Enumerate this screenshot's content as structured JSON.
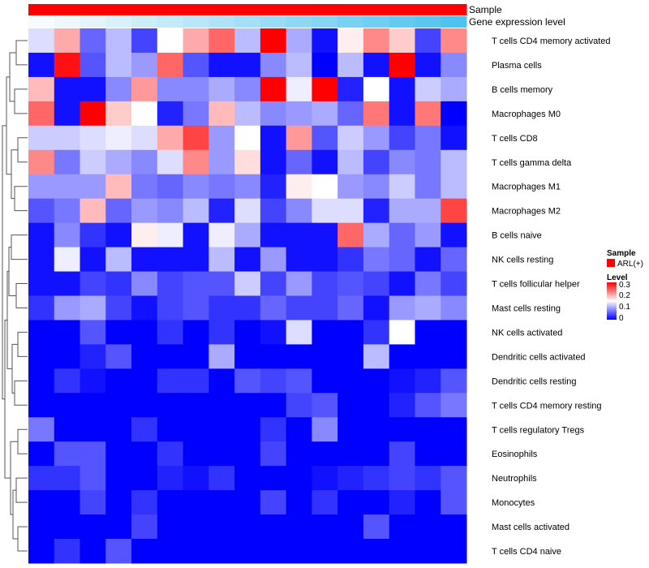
{
  "chart_data": {
    "type": "heatmap",
    "title": "",
    "annotation_tracks": [
      "Sample",
      "Gene expression level"
    ],
    "row_labels": [
      "T cells CD4 memory activated",
      "Plasma cells",
      "B cells memory",
      "Macrophages M0",
      "T cells CD8",
      "T cells gamma delta",
      "Macrophages M1",
      "Macrophages M2",
      "B cells naive",
      "NK cells resting",
      "T cells follicular helper",
      "Mast cells resting",
      "NK cells activated",
      "Dendritic cells activated",
      "Dendritic cells resting",
      "T cells CD4 memory resting",
      "T cells regulatory  Tregs",
      "Eosinophils",
      "Neutrophils",
      "Monocytes",
      "Mast cells activated",
      "T cells CD4 naive"
    ],
    "n_columns": 17,
    "values": [
      [
        0.13,
        0.2,
        0.06,
        0.11,
        0.04,
        0.15,
        0.2,
        0.24,
        0.11,
        0.3,
        0.1,
        0.01,
        0.16,
        0.22,
        0.18,
        0.04,
        0.22
      ],
      [
        0.01,
        0.29,
        0.05,
        0.11,
        0.09,
        0.24,
        0.05,
        0.01,
        0.01,
        0.08,
        0.11,
        0.0,
        0.11,
        0.01,
        0.3,
        0.01,
        0.08
      ],
      [
        0.19,
        0.01,
        0.01,
        0.08,
        0.21,
        0.08,
        0.08,
        0.1,
        0.08,
        0.3,
        0.14,
        0.3,
        0.02,
        0.15,
        0.01,
        0.12,
        0.1
      ],
      [
        0.24,
        0.01,
        0.3,
        0.18,
        0.15,
        0.02,
        0.07,
        0.19,
        0.11,
        0.08,
        0.09,
        0.1,
        0.06,
        0.23,
        0.01,
        0.23,
        0.0
      ],
      [
        0.12,
        0.12,
        0.13,
        0.14,
        0.13,
        0.2,
        0.26,
        0.09,
        0.15,
        0.01,
        0.21,
        0.05,
        0.12,
        0.09,
        0.04,
        0.07,
        0.01
      ],
      [
        0.22,
        0.07,
        0.12,
        0.1,
        0.08,
        0.13,
        0.22,
        0.09,
        0.17,
        0.01,
        0.06,
        0.01,
        0.11,
        0.04,
        0.08,
        0.07,
        0.11
      ],
      [
        0.09,
        0.09,
        0.09,
        0.19,
        0.07,
        0.06,
        0.08,
        0.07,
        0.08,
        0.02,
        0.16,
        0.15,
        0.09,
        0.08,
        0.12,
        0.07,
        0.11
      ],
      [
        0.05,
        0.07,
        0.19,
        0.06,
        0.09,
        0.08,
        0.11,
        0.02,
        0.13,
        0.04,
        0.08,
        0.13,
        0.13,
        0.02,
        0.1,
        0.1,
        0.26
      ],
      [
        0.01,
        0.08,
        0.03,
        0.01,
        0.16,
        0.14,
        0.01,
        0.14,
        0.1,
        0.01,
        0.01,
        0.01,
        0.24,
        0.1,
        0.06,
        0.09,
        0.01
      ],
      [
        0.01,
        0.14,
        0.01,
        0.11,
        0.01,
        0.01,
        0.01,
        0.11,
        0.01,
        0.09,
        0.01,
        0.01,
        0.03,
        0.07,
        0.06,
        0.01,
        0.06
      ],
      [
        0.01,
        0.01,
        0.04,
        0.03,
        0.08,
        0.04,
        0.05,
        0.05,
        0.12,
        0.04,
        0.09,
        0.04,
        0.05,
        0.04,
        0.01,
        0.07,
        0.04
      ],
      [
        0.03,
        0.09,
        0.1,
        0.04,
        0.01,
        0.04,
        0.05,
        0.03,
        0.03,
        0.06,
        0.04,
        0.04,
        0.06,
        0.01,
        0.09,
        0.1,
        0.08
      ],
      [
        0.0,
        0.0,
        0.05,
        0.0,
        0.0,
        0.03,
        0.0,
        0.03,
        0.0,
        0.01,
        0.13,
        0.0,
        0.0,
        0.03,
        0.15,
        0.0,
        0.0
      ],
      [
        0.0,
        0.0,
        0.02,
        0.05,
        0.0,
        0.0,
        0.0,
        0.1,
        0.0,
        0.0,
        0.0,
        0.0,
        0.0,
        0.11,
        0.0,
        0.0,
        0.0
      ],
      [
        0.0,
        0.03,
        0.01,
        0.0,
        0.0,
        0.03,
        0.03,
        0.0,
        0.05,
        0.04,
        0.05,
        0.0,
        0.0,
        0.0,
        0.01,
        0.02,
        0.05
      ],
      [
        0.0,
        0.0,
        0.0,
        0.0,
        0.0,
        0.0,
        0.0,
        0.0,
        0.0,
        0.0,
        0.04,
        0.05,
        0.0,
        0.0,
        0.02,
        0.05,
        0.07
      ],
      [
        0.07,
        0.0,
        0.0,
        0.0,
        0.03,
        0.0,
        0.0,
        0.0,
        0.0,
        0.03,
        0.0,
        0.08,
        0.0,
        0.0,
        0.0,
        0.0,
        0.0
      ],
      [
        0.0,
        0.05,
        0.05,
        0.0,
        0.0,
        0.03,
        0.0,
        0.0,
        0.0,
        0.04,
        0.0,
        0.0,
        0.0,
        0.0,
        0.04,
        0.0,
        0.0
      ],
      [
        0.03,
        0.03,
        0.05,
        0.0,
        0.0,
        0.02,
        0.01,
        0.03,
        0.0,
        0.0,
        0.0,
        0.01,
        0.02,
        0.03,
        0.04,
        0.03,
        0.05
      ],
      [
        0.0,
        0.0,
        0.04,
        0.0,
        0.03,
        0.0,
        0.0,
        0.0,
        0.0,
        0.04,
        0.0,
        0.03,
        0.0,
        0.0,
        0.02,
        0.0,
        0.05
      ],
      [
        0.0,
        0.0,
        0.0,
        0.0,
        0.04,
        0.0,
        0.0,
        0.0,
        0.0,
        0.0,
        0.0,
        0.0,
        0.0,
        0.05,
        0.0,
        0.0,
        0.0
      ],
      [
        0.0,
        0.03,
        0.0,
        0.05,
        0.0,
        0.0,
        0.0,
        0.0,
        0.0,
        0.0,
        0.0,
        0.0,
        0.0,
        0.0,
        0.0,
        0.0,
        0.0
      ]
    ],
    "sample_track": [
      "ARL(+)",
      "ARL(+)",
      "ARL(+)",
      "ARL(+)",
      "ARL(+)",
      "ARL(+)",
      "ARL(+)",
      "ARL(+)",
      "ARL(+)",
      "ARL(+)",
      "ARL(+)",
      "ARL(+)",
      "ARL(+)",
      "ARL(+)",
      "ARL(+)",
      "ARL(+)",
      "ARL(+)"
    ],
    "expression_track": [
      0.0,
      0.06,
      0.12,
      0.18,
      0.25,
      0.31,
      0.37,
      0.43,
      0.5,
      0.56,
      0.62,
      0.68,
      0.75,
      0.81,
      0.87,
      0.93,
      1.0
    ],
    "color_scale": {
      "min": 0,
      "mid": 0.15,
      "max": 0.3,
      "low": "#0000ff",
      "mid_color": "#ffffff",
      "high": "#ff0000"
    },
    "expression_scale": {
      "low": "#f7fbfc",
      "high": "#4fc3f0"
    },
    "legend": {
      "sample_title": "Sample",
      "sample_entries": [
        {
          "label": "ARL(+)",
          "color": "#ff0000"
        }
      ],
      "level_title": "Level",
      "level_ticks": [
        "0.3",
        "0.2",
        "0.1",
        "0"
      ],
      "placement": "right"
    }
  }
}
